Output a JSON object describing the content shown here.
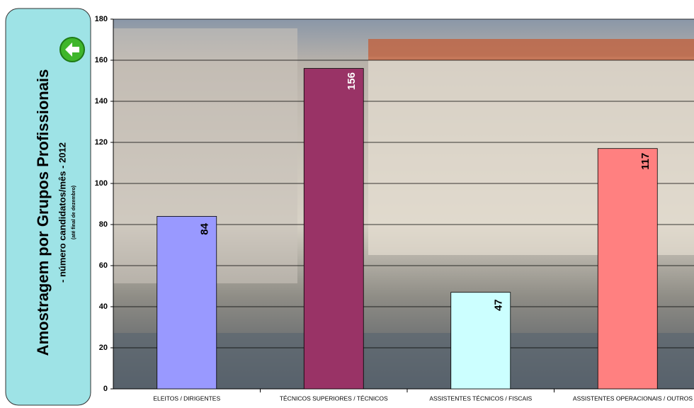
{
  "chart_data": {
    "type": "bar",
    "title": "Amostragem por Grupos Profissionais",
    "subtitle": "- número candidatos/mês - 2012",
    "note": "(até final de dezembro)",
    "categories": [
      "ELEITOS / DIRIGENTES",
      "TÉCNICOS SUPERIORES / TÉCNICOS",
      "ASSISTENTES TÉCNICOS / FISCAIS",
      "ASSISTENTES OPERACIONAIS / OUTROS"
    ],
    "values": [
      84,
      156,
      47,
      117
    ],
    "colors": [
      "#9999ff",
      "#993366",
      "#ccffff",
      "#ff8080"
    ],
    "ylim": [
      0,
      180
    ],
    "yticks": [
      0,
      20,
      40,
      60,
      80,
      100,
      120,
      140,
      160,
      180
    ],
    "grid": true
  }
}
